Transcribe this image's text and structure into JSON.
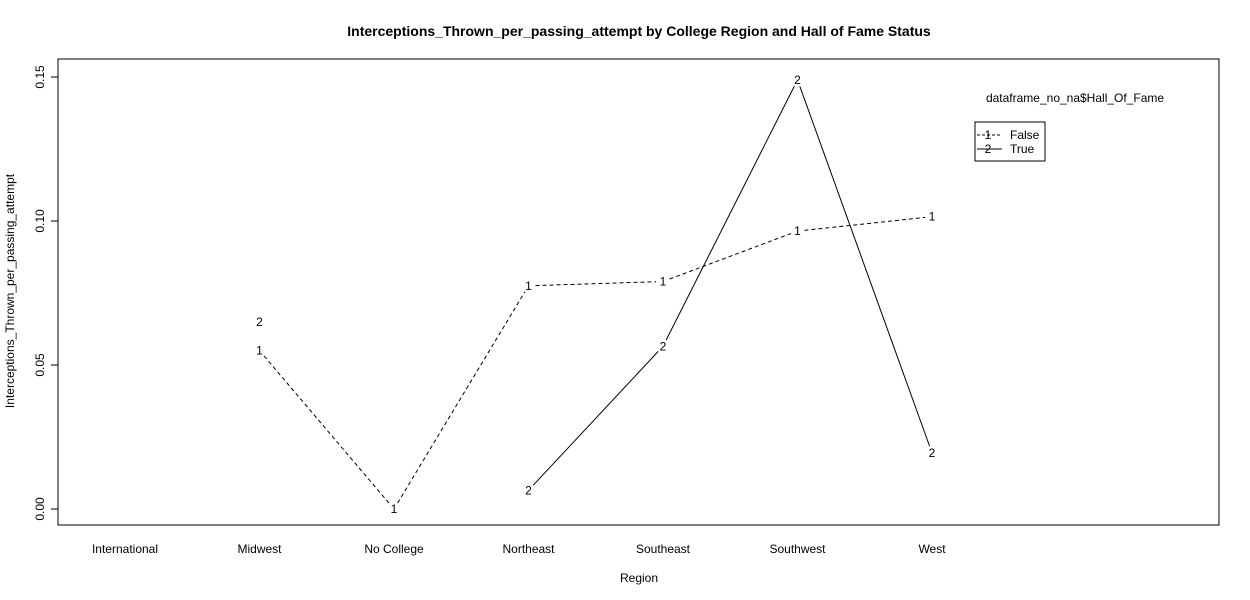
{
  "chart_data": {
    "type": "line",
    "title": "Interceptions_Thrown_per_passing_attempt by College Region and Hall of Fame Status",
    "xlabel": "Region",
    "ylabel": "Interceptions_Thrown_per_passing_attempt",
    "categories": [
      "International",
      "Midwest",
      "No College",
      "Northeast",
      "Southeast",
      "Southwest",
      "West"
    ],
    "y_ticks": [
      "0.00",
      "0.05",
      "0.10",
      "0.15"
    ],
    "ylim": [
      0.0,
      0.155
    ],
    "grid": false,
    "legend_placement": "top-right",
    "legend_title": "dataframe_no_na$Hall_Of_Fame",
    "series": [
      {
        "name": "False",
        "symbol": "1",
        "line_style": "dashed",
        "values": [
          null,
          0.055,
          0.0,
          0.0775,
          0.079,
          0.0965,
          0.1015
        ]
      },
      {
        "name": "True",
        "symbol": "2",
        "line_style": "solid",
        "values": [
          null,
          0.065,
          null,
          0.0065,
          0.0565,
          0.149,
          0.0195
        ]
      }
    ]
  }
}
